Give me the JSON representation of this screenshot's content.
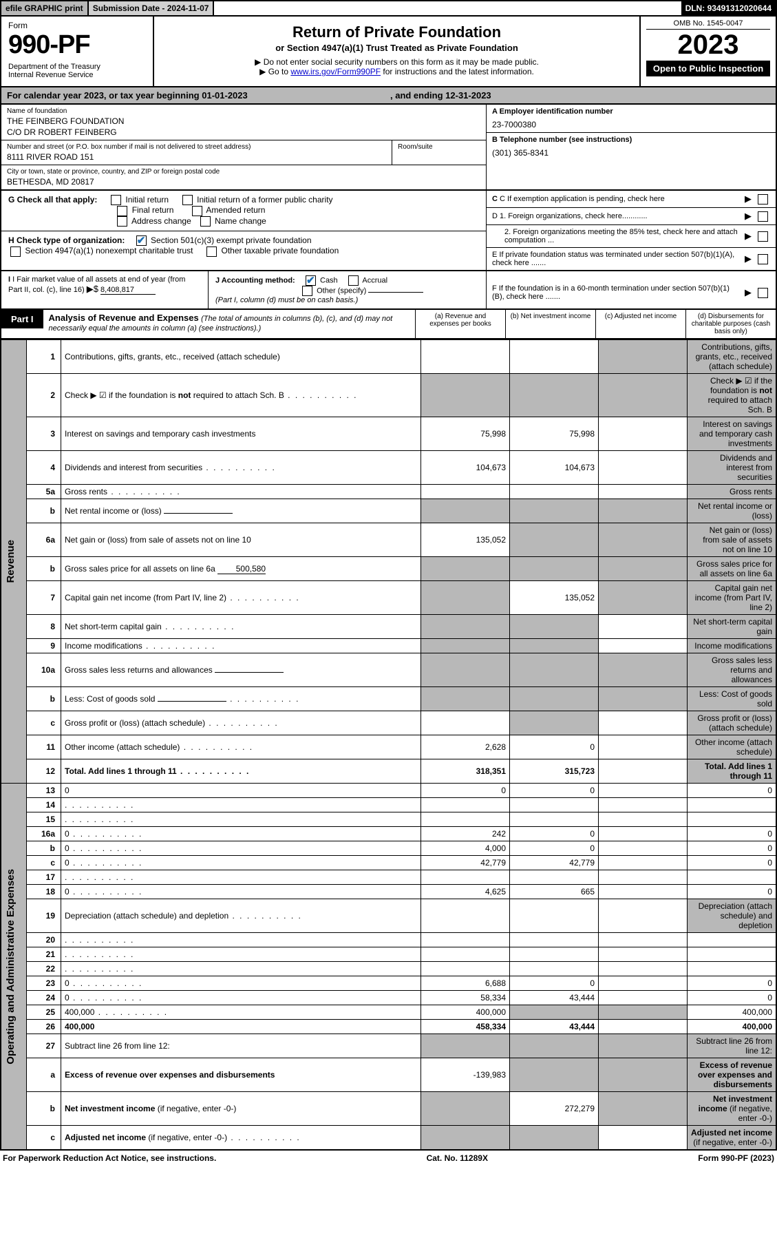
{
  "topbar": {
    "efile": "efile GRAPHIC print",
    "subdate_label": "Submission Date - ",
    "subdate": "2024-11-07",
    "dln_label": "DLN: ",
    "dln": "93491312020644"
  },
  "header": {
    "form_label": "Form",
    "form_no": "990-PF",
    "dept": "Department of the Treasury",
    "irs": "Internal Revenue Service",
    "title": "Return of Private Foundation",
    "subtitle": "or Section 4947(a)(1) Trust Treated as Private Foundation",
    "instr1": "▶ Do not enter social security numbers on this form as it may be made public.",
    "instr2_pre": "▶ Go to ",
    "instr2_link": "www.irs.gov/Form990PF",
    "instr2_post": " for instructions and the latest information.",
    "omb": "OMB No. 1545-0047",
    "year": "2023",
    "open": "Open to Public Inspection"
  },
  "calendar": {
    "pre": "For calendar year 2023, or tax year beginning ",
    "begin": "01-01-2023",
    "mid": " , and ending ",
    "end": "12-31-2023"
  },
  "ident": {
    "name_label": "Name of foundation",
    "name1": "THE FEINBERG FOUNDATION",
    "name2": "C/O DR ROBERT FEINBERG",
    "addr_label": "Number and street (or P.O. box number if mail is not delivered to street address)",
    "addr": "8111 RIVER ROAD 151",
    "room_label": "Room/suite",
    "city_label": "City or town, state or province, country, and ZIP or foreign postal code",
    "city": "BETHESDA, MD  20817",
    "ein_label": "A Employer identification number",
    "ein": "23-7000380",
    "phone_label": "B Telephone number (see instructions)",
    "phone": "(301) 365-8341",
    "c_label": "C If exemption application is pending, check here",
    "d1": "D 1. Foreign organizations, check here............",
    "d2": "2. Foreign organizations meeting the 85% test, check here and attach computation ...",
    "e_label": "E  If private foundation status was terminated under section 507(b)(1)(A), check here .......",
    "f_label": "F  If the foundation is in a 60-month termination under section 507(b)(1)(B), check here ......."
  },
  "g": {
    "label": "G Check all that apply:",
    "initial": "Initial return",
    "initial_former": "Initial return of a former public charity",
    "final": "Final return",
    "amended": "Amended return",
    "addr_change": "Address change",
    "name_change": "Name change"
  },
  "h": {
    "label": "H Check type of organization:",
    "s501": "Section 501(c)(3) exempt private foundation",
    "s4947": "Section 4947(a)(1) nonexempt charitable trust",
    "other_tax": "Other taxable private foundation"
  },
  "i": {
    "label": "I Fair market value of all assets at end of year (from Part II, col. (c), line 16)",
    "arrow": "▶$",
    "value": "8,408,817"
  },
  "j": {
    "label": "J Accounting method:",
    "cash": "Cash",
    "accrual": "Accrual",
    "other": "Other (specify)",
    "note": "(Part I, column (d) must be on cash basis.)"
  },
  "part1": {
    "tab": "Part I",
    "title": "Analysis of Revenue and Expenses",
    "note": "(The total of amounts in columns (b), (c), and (d) may not necessarily equal the amounts in column (a) (see instructions).)",
    "col_a": "(a) Revenue and expenses per books",
    "col_b": "(b) Net investment income",
    "col_c": "(c) Adjusted net income",
    "col_d": "(d) Disbursements for charitable purposes (cash basis only)"
  },
  "side": {
    "revenue": "Revenue",
    "expenses": "Operating and Administrative Expenses"
  },
  "rows": [
    {
      "n": "1",
      "d": "Contributions, gifts, grants, etc., received (attach schedule)",
      "a": "",
      "b": "",
      "c_shade": true,
      "d_shade": true
    },
    {
      "n": "2",
      "d": "Check ▶ ☑ if the foundation is <b>not</b> required to attach Sch. B",
      "a_shade": true,
      "b_shade": true,
      "c_shade": true,
      "d_shade": true,
      "dots": true
    },
    {
      "n": "3",
      "d": "Interest on savings and temporary cash investments",
      "a": "75,998",
      "b": "75,998",
      "c": "",
      "d_shade": true
    },
    {
      "n": "4",
      "d": "Dividends and interest from securities",
      "a": "104,673",
      "b": "104,673",
      "c": "",
      "d_shade": true,
      "dots": true
    },
    {
      "n": "5a",
      "d": "Gross rents",
      "a": "",
      "b": "",
      "c": "",
      "d_shade": true,
      "dots": true
    },
    {
      "n": "b",
      "d": "Net rental income or (loss)",
      "a_shade": true,
      "b_shade": true,
      "c_shade": true,
      "d_shade": true,
      "inline_under": true
    },
    {
      "n": "6a",
      "d": "Net gain or (loss) from sale of assets not on line 10",
      "a": "135,052",
      "b_shade": true,
      "c_shade": true,
      "d_shade": true
    },
    {
      "n": "b",
      "d": "Gross sales price for all assets on line 6a",
      "inline_val": "500,580",
      "a_shade": true,
      "b_shade": true,
      "c_shade": true,
      "d_shade": true
    },
    {
      "n": "7",
      "d": "Capital gain net income (from Part IV, line 2)",
      "a_shade": true,
      "b": "135,052",
      "c_shade": true,
      "d_shade": true,
      "dots": true
    },
    {
      "n": "8",
      "d": "Net short-term capital gain",
      "a_shade": true,
      "b_shade": true,
      "c": "",
      "d_shade": true,
      "dots": true
    },
    {
      "n": "9",
      "d": "Income modifications",
      "a_shade": true,
      "b_shade": true,
      "c": "",
      "d_shade": true,
      "dots": true
    },
    {
      "n": "10a",
      "d": "Gross sales less returns and allowances",
      "a_shade": true,
      "b_shade": true,
      "c_shade": true,
      "d_shade": true,
      "inline_under": true
    },
    {
      "n": "b",
      "d": "Less: Cost of goods sold",
      "a_shade": true,
      "b_shade": true,
      "c_shade": true,
      "d_shade": true,
      "inline_under": true,
      "dots": true
    },
    {
      "n": "c",
      "d": "Gross profit or (loss) (attach schedule)",
      "a": "",
      "b_shade": true,
      "c": "",
      "d_shade": true,
      "dots": true
    },
    {
      "n": "11",
      "d": "Other income (attach schedule)",
      "a": "2,628",
      "b": "0",
      "c": "",
      "d_shade": true,
      "dots": true
    },
    {
      "n": "12",
      "d": "<b>Total.</b> Add lines 1 through 11",
      "a": "318,351",
      "b": "315,723",
      "c": "",
      "d_shade": true,
      "dots": true,
      "bold": true
    }
  ],
  "exp_rows": [
    {
      "n": "13",
      "d": "0",
      "a": "0",
      "b": "0",
      "c": ""
    },
    {
      "n": "14",
      "d": "",
      "a": "",
      "b": "",
      "c": "",
      "dots": true
    },
    {
      "n": "15",
      "d": "",
      "a": "",
      "b": "",
      "c": "",
      "dots": true
    },
    {
      "n": "16a",
      "d": "0",
      "a": "242",
      "b": "0",
      "c": "",
      "dots": true
    },
    {
      "n": "b",
      "d": "0",
      "a": "4,000",
      "b": "0",
      "c": "",
      "dots": true
    },
    {
      "n": "c",
      "d": "0",
      "a": "42,779",
      "b": "42,779",
      "c": "",
      "dots": true
    },
    {
      "n": "17",
      "d": "",
      "a": "",
      "b": "",
      "c": "",
      "dots": true
    },
    {
      "n": "18",
      "d": "0",
      "a": "4,625",
      "b": "665",
      "c": "",
      "dots": true
    },
    {
      "n": "19",
      "d": "Depreciation (attach schedule) and depletion",
      "a": "",
      "b": "",
      "c": "",
      "d_shade": true,
      "dots": true
    },
    {
      "n": "20",
      "d": "",
      "a": "",
      "b": "",
      "c": "",
      "dots": true
    },
    {
      "n": "21",
      "d": "",
      "a": "",
      "b": "",
      "c": "",
      "dots": true
    },
    {
      "n": "22",
      "d": "",
      "a": "",
      "b": "",
      "c": "",
      "dots": true
    },
    {
      "n": "23",
      "d": "0",
      "a": "6,688",
      "b": "0",
      "c": "",
      "dots": true
    },
    {
      "n": "24",
      "d": "0",
      "a": "58,334",
      "b": "43,444",
      "c": "",
      "dots": true
    },
    {
      "n": "25",
      "d": "400,000",
      "a": "400,000",
      "b_shade": true,
      "c_shade": true,
      "dots": true
    },
    {
      "n": "26",
      "d": "400,000",
      "a": "458,334",
      "b": "43,444",
      "c": "",
      "bold": true
    }
  ],
  "net_rows": [
    {
      "n": "27",
      "d": "Subtract line 26 from line 12:",
      "a_shade": true,
      "b_shade": true,
      "c_shade": true,
      "d_shade": true
    },
    {
      "n": "a",
      "d": "<b>Excess of revenue over expenses and disbursements</b>",
      "a": "-139,983",
      "b_shade": true,
      "c_shade": true,
      "d_shade": true
    },
    {
      "n": "b",
      "d": "<b>Net investment income</b> (if negative, enter -0-)",
      "a_shade": true,
      "b": "272,279",
      "c_shade": true,
      "d_shade": true
    },
    {
      "n": "c",
      "d": "<b>Adjusted net income</b> (if negative, enter -0-)",
      "a_shade": true,
      "b_shade": true,
      "c": "",
      "d_shade": true,
      "dots": true
    }
  ],
  "footer": {
    "left": "For Paperwork Reduction Act Notice, see instructions.",
    "mid": "Cat. No. 11289X",
    "right": "Form 990-PF (2023)"
  }
}
